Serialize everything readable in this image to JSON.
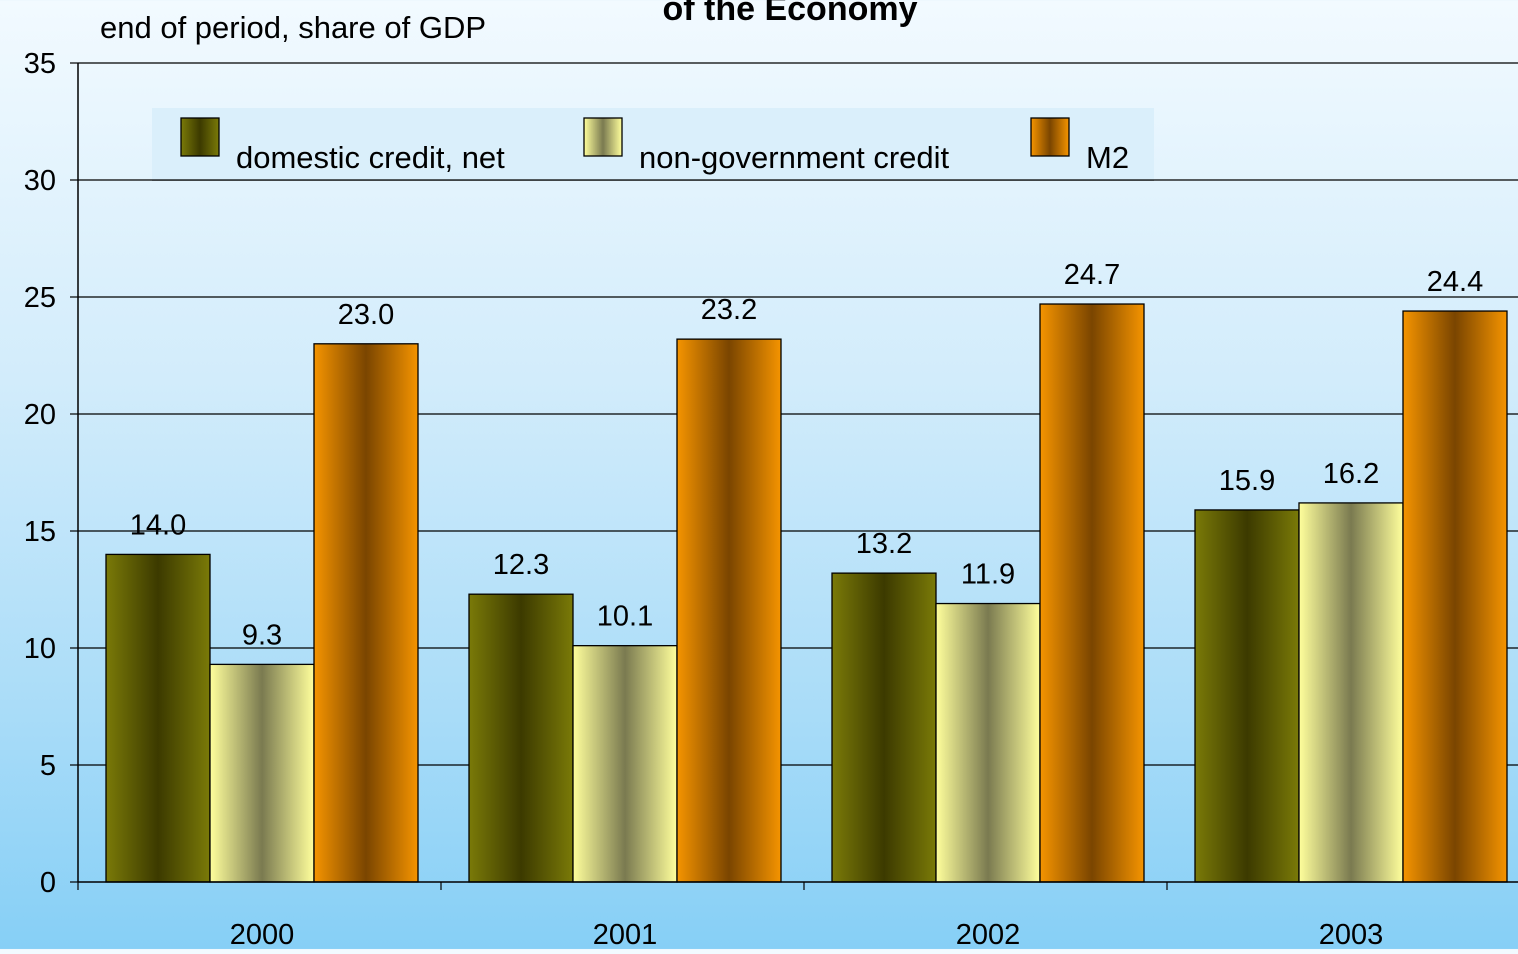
{
  "chart_data": {
    "type": "bar",
    "title": "of the Economy",
    "subtitle": "end of period, share of GDP",
    "xlabel": "",
    "ylabel": "",
    "categories": [
      "2000",
      "2001",
      "2002",
      "2003"
    ],
    "ylim": [
      0,
      35
    ],
    "yticks": [
      0,
      5,
      10,
      15,
      20,
      25,
      30,
      35
    ],
    "grid": true,
    "legend_position": "top",
    "series": [
      {
        "name": "domestic credit, net",
        "values": [
          14.0,
          12.3,
          13.2,
          15.9
        ],
        "labels": [
          "14.0",
          "12.3",
          "13.2",
          "15.9"
        ],
        "color": "#6e6e00",
        "gradient": [
          "#7a7a08",
          "#3c3a00",
          "#7a7a08"
        ]
      },
      {
        "name": "non-government credit",
        "values": [
          9.3,
          10.1,
          11.9,
          16.2
        ],
        "labels": [
          "9.3",
          "10.1",
          "11.9",
          "16.2"
        ],
        "color": "#ffff99",
        "gradient": [
          "#ffff9c",
          "#7a7a50",
          "#ffff9c"
        ]
      },
      {
        "name": "M2",
        "values": [
          23.0,
          23.2,
          24.7,
          24.4
        ],
        "labels": [
          "23.0",
          "23.2",
          "24.7",
          "24.4"
        ],
        "color": "#f29200",
        "gradient": [
          "#f59400",
          "#7a4500",
          "#f59400"
        ]
      }
    ]
  }
}
